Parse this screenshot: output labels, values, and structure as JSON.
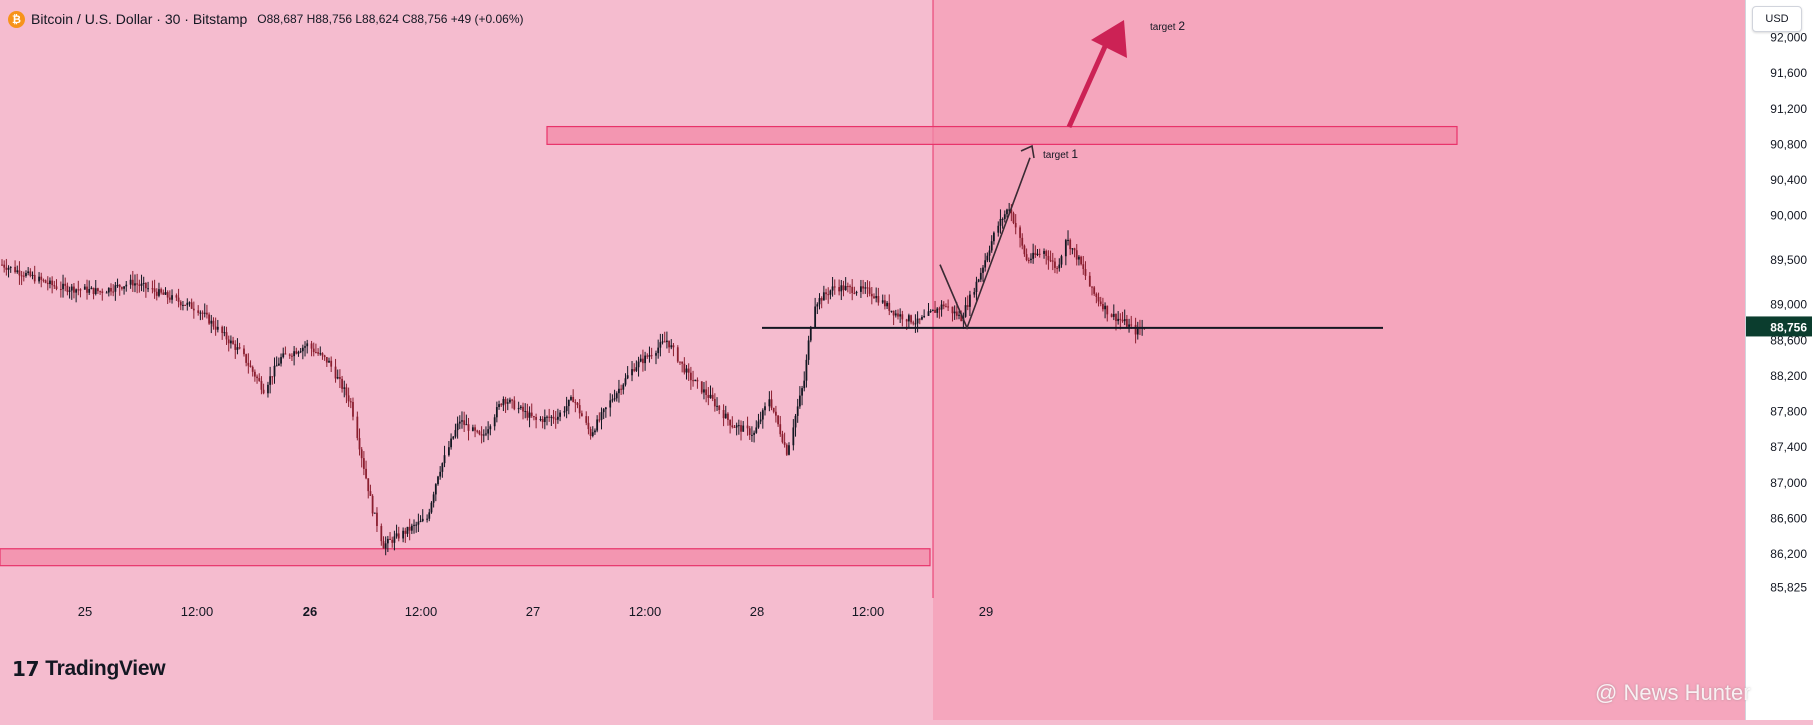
{
  "header": {
    "coin_icon": "bitcoin-icon",
    "symbol": "Bitcoin / U.S. Dollar · 30 · Bitstamp",
    "ohlc": "O88,687 H88,756 L88,624 C88,756 +49 (+0.06%)"
  },
  "currency_button": "USD",
  "logo_text": "TradingView",
  "watermark": "@ News Hunter",
  "colors": {
    "background": "#f5bccf",
    "highlight_zone": "#f5a6bd",
    "zone_fill": "#f28aa7",
    "zone_border": "#e8336a",
    "arrow_target2": "#cc2255",
    "candle_up": "#131722",
    "candle_down": "#8b1e2f",
    "price_tag": "#0b3d2e"
  },
  "chart_data": {
    "type": "candlestick",
    "symbol": "Bitcoin / U.S. Dollar",
    "interval": "30",
    "exchange": "Bitstamp",
    "currency": "USD",
    "y_range": [
      85825,
      92200
    ],
    "y_ticks": [
      92000,
      91600,
      91200,
      90800,
      90400,
      90000,
      89500,
      89000,
      88600,
      88200,
      87800,
      87400,
      87000,
      86600,
      86200,
      85825
    ],
    "y_tick_labels": [
      "92,000",
      "91,600",
      "91,200",
      "90,800",
      "90,400",
      "90,000",
      "89,500",
      "89,000",
      "88,600",
      "88,200",
      "87,800",
      "87,400",
      "87,000",
      "86,600",
      "86,200",
      "85,825"
    ],
    "x_labels": [
      {
        "label": "25",
        "bold": false
      },
      {
        "label": "12:00",
        "bold": false
      },
      {
        "label": "26",
        "bold": true
      },
      {
        "label": "12:00",
        "bold": false
      },
      {
        "label": "27",
        "bold": false
      },
      {
        "label": "12:00",
        "bold": false
      },
      {
        "label": "28",
        "bold": false
      },
      {
        "label": "12:00",
        "bold": false
      },
      {
        "label": "29",
        "bold": false
      }
    ],
    "last_price": 88756,
    "last_price_label": "88,756",
    "price_path": [
      [
        0,
        89450
      ],
      [
        25,
        89200
      ],
      [
        45,
        89150
      ],
      [
        60,
        89250
      ],
      [
        75,
        89100
      ],
      [
        90,
        88950
      ],
      [
        100,
        88700
      ],
      [
        110,
        88450
      ],
      [
        120,
        88050
      ],
      [
        128,
        88400
      ],
      [
        140,
        88550
      ],
      [
        150,
        88350
      ],
      [
        160,
        87900
      ],
      [
        165,
        87300
      ],
      [
        170,
        86700
      ],
      [
        175,
        86300
      ],
      [
        185,
        86450
      ],
      [
        195,
        86600
      ],
      [
        200,
        87100
      ],
      [
        210,
        87700
      ],
      [
        220,
        87500
      ],
      [
        230,
        87950
      ],
      [
        245,
        87700
      ],
      [
        255,
        87750
      ],
      [
        262,
        87950
      ],
      [
        270,
        87550
      ],
      [
        280,
        87950
      ],
      [
        290,
        88300
      ],
      [
        305,
        88600
      ],
      [
        315,
        88200
      ],
      [
        325,
        87950
      ],
      [
        335,
        87650
      ],
      [
        345,
        87550
      ],
      [
        352,
        87950
      ],
      [
        360,
        87350
      ],
      [
        368,
        88150
      ],
      [
        372,
        89000
      ],
      [
        382,
        89200
      ],
      [
        398,
        89150
      ],
      [
        410,
        88900
      ],
      [
        420,
        88800
      ],
      [
        432,
        89000
      ],
      [
        440,
        88850
      ],
      [
        448,
        89300
      ],
      [
        456,
        89850
      ],
      [
        462,
        90100
      ],
      [
        470,
        89500
      ],
      [
        478,
        89600
      ],
      [
        484,
        89400
      ],
      [
        488,
        89750
      ],
      [
        494,
        89500
      ],
      [
        500,
        89150
      ],
      [
        508,
        88900
      ],
      [
        515,
        88800
      ],
      [
        520,
        88700
      ],
      [
        524,
        88756
      ]
    ],
    "zones": [
      {
        "name": "resistance",
        "from": 90800,
        "to": 91000
      },
      {
        "name": "support",
        "from": 86070,
        "to": 86260
      }
    ],
    "horizontal_line": {
      "price": 88740
    },
    "annotations": [
      {
        "text": "target",
        "num": "1",
        "price": 90550
      },
      {
        "text": "target",
        "num": "2",
        "price": 92150
      }
    ]
  }
}
